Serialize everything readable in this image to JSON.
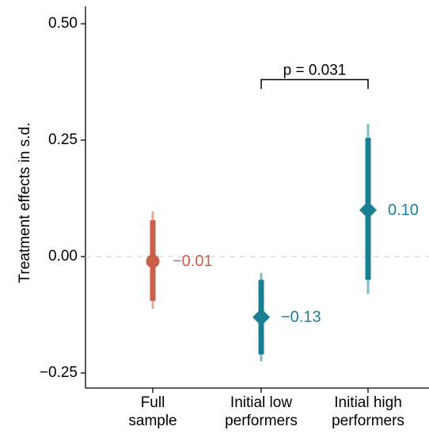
{
  "chart_data": {
    "type": "scatter",
    "title": "",
    "xlabel": "",
    "ylabel": "Treatment effects in s.d.",
    "ylim": [
      -0.28,
      0.53
    ],
    "y_ticks": [
      {
        "value": -0.25,
        "label": "−0.25"
      },
      {
        "value": 0.0,
        "label": "0.00"
      },
      {
        "value": 0.25,
        "label": "0.25"
      },
      {
        "value": 0.5,
        "label": "0.50"
      }
    ],
    "reference_line": {
      "y": 0.0,
      "style": "dashed",
      "color": "#dddddd"
    },
    "categories": [
      [
        "Full",
        "sample"
      ],
      [
        "Initial low",
        "performers"
      ],
      [
        "Initial high",
        "performers"
      ]
    ],
    "points": [
      {
        "category_index": 0,
        "estimate": -0.01,
        "label": "−0.01",
        "ci_inner": [
          -0.095,
          0.078
        ],
        "ci_outer": [
          -0.112,
          0.097
        ],
        "marker": "circle",
        "color": "#c8604a"
      },
      {
        "category_index": 1,
        "estimate": -0.13,
        "label": "−0.13",
        "ci_inner": [
          -0.21,
          -0.05
        ],
        "ci_outer": [
          -0.225,
          -0.035
        ],
        "marker": "diamond",
        "color": "#1a7f93"
      },
      {
        "category_index": 2,
        "estimate": 0.1,
        "label": "0.10",
        "ci_inner": [
          -0.05,
          0.255
        ],
        "ci_outer": [
          -0.08,
          0.285
        ],
        "marker": "diamond",
        "color": "#1a7f93"
      }
    ],
    "annotation": {
      "text": "p = 0.031",
      "from_category": 1,
      "to_category": 2,
      "y": 0.38,
      "tick_drop": 0.02
    }
  }
}
